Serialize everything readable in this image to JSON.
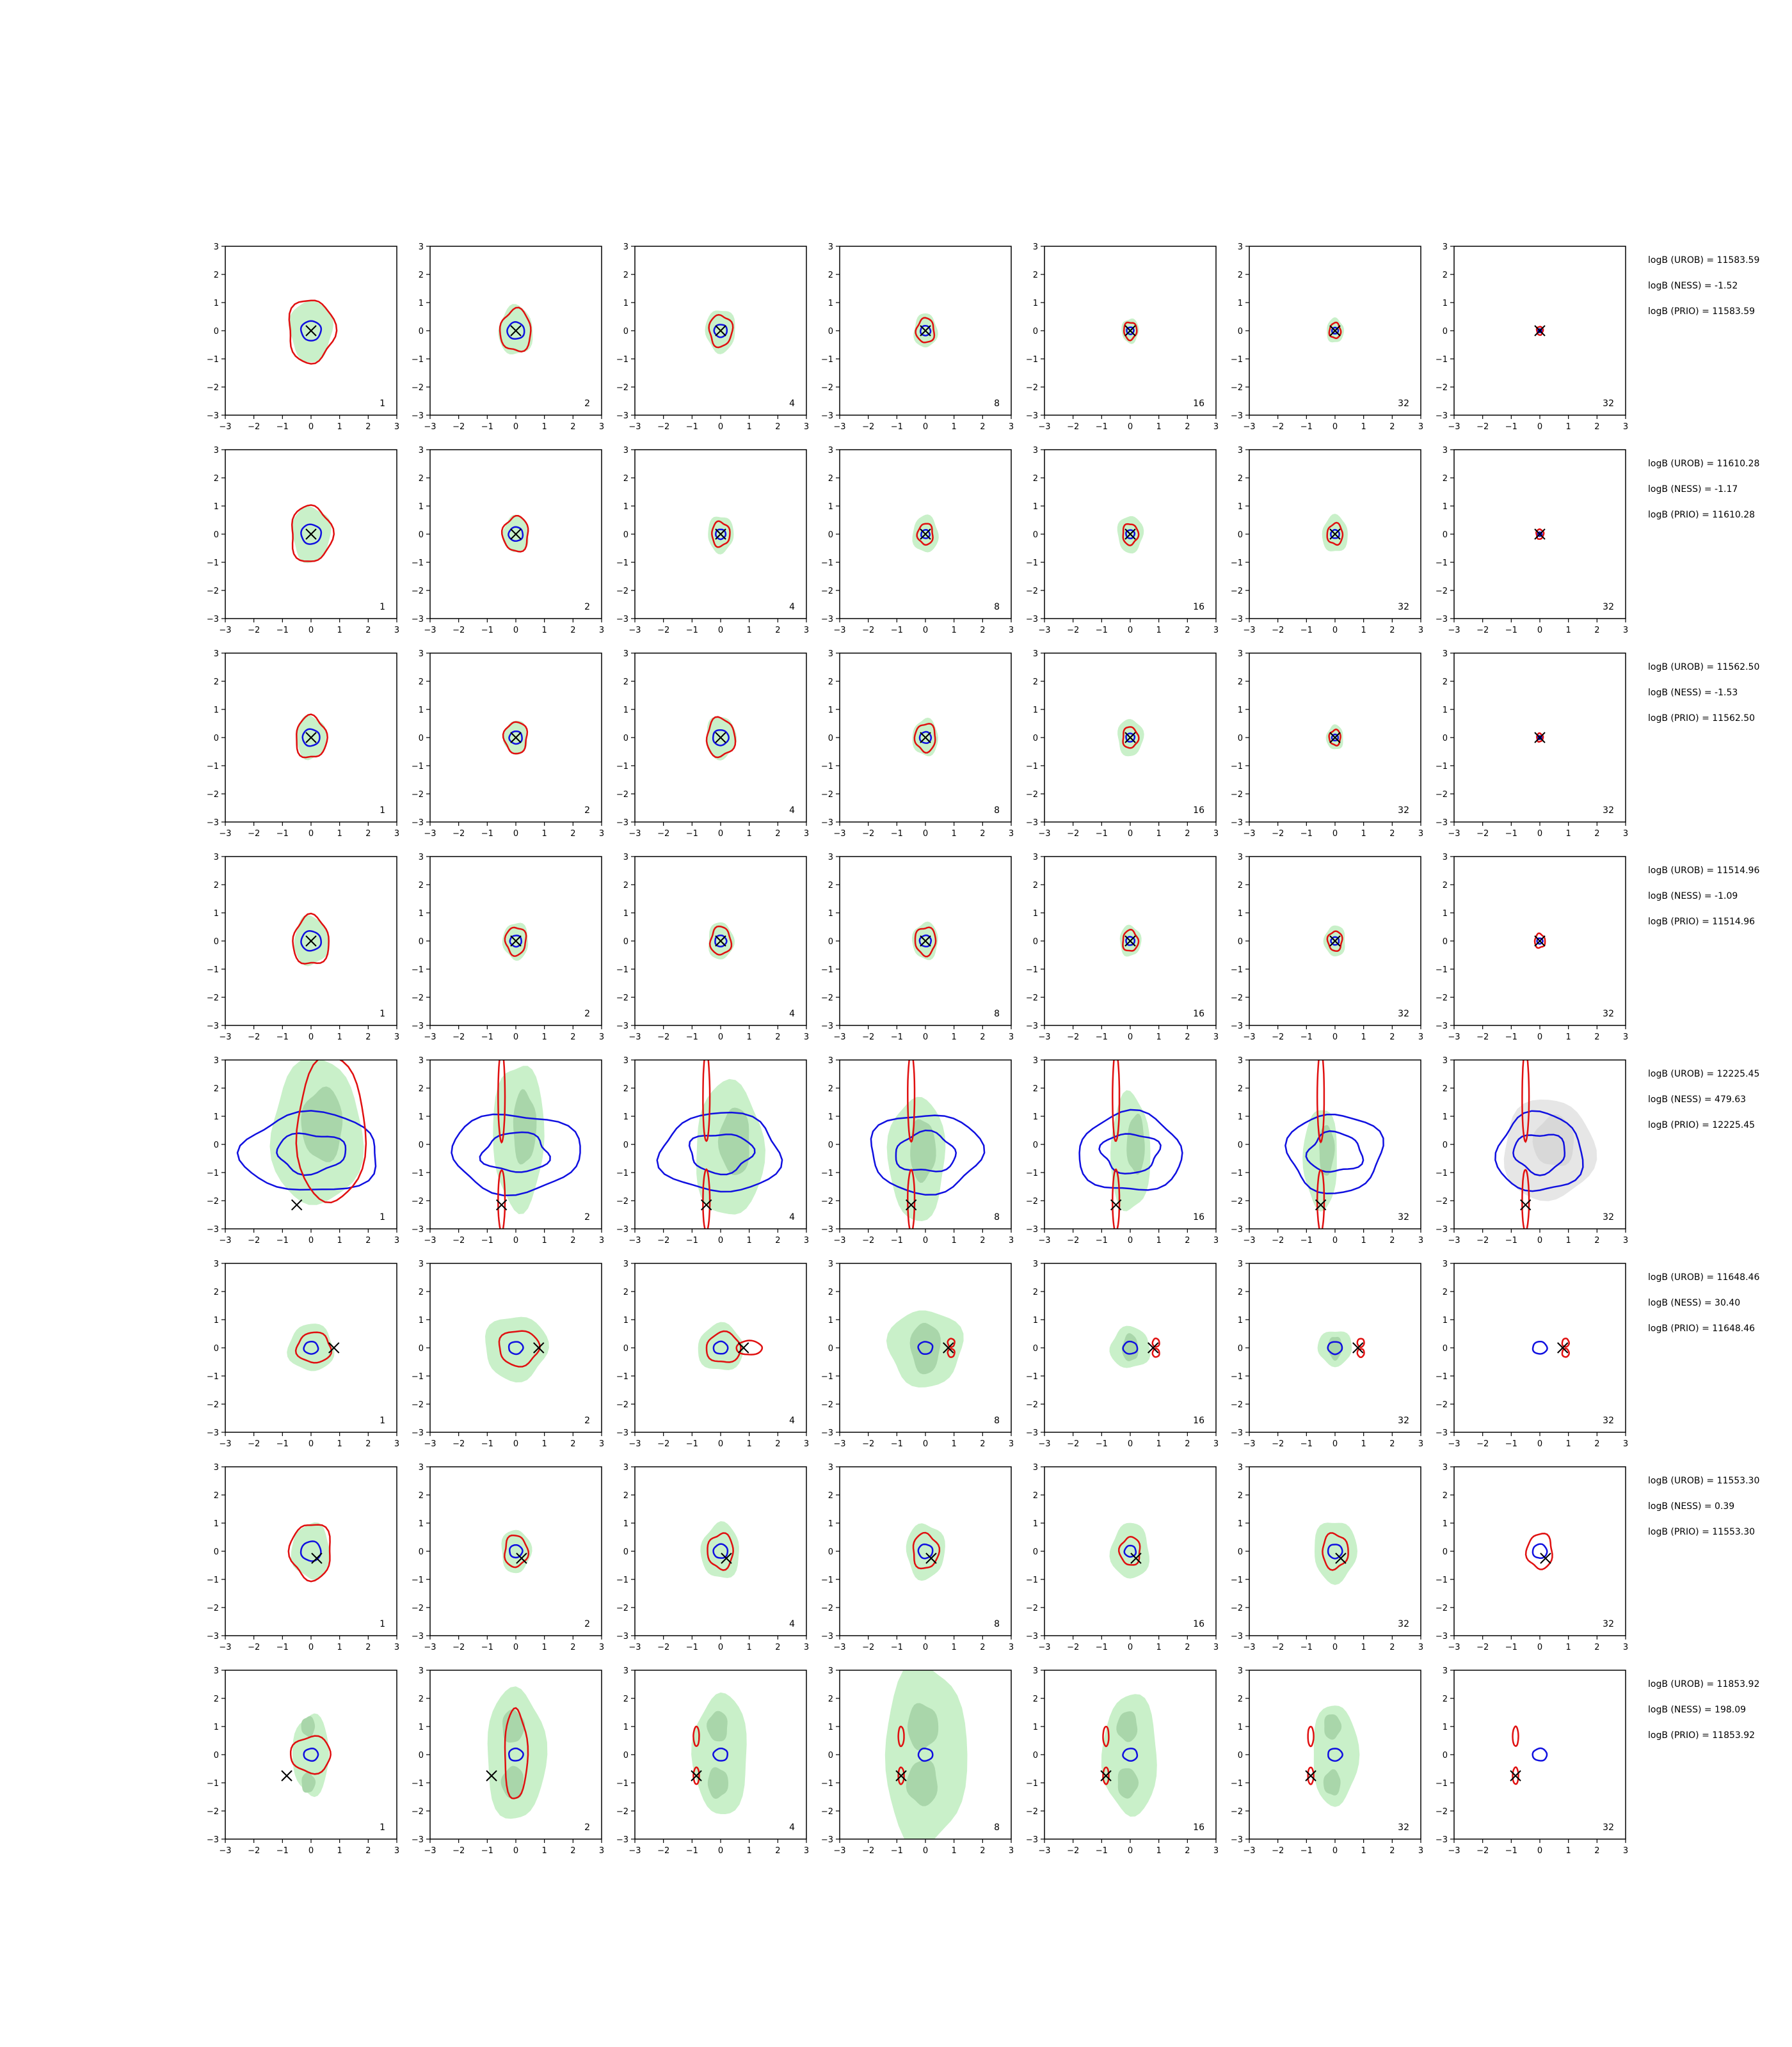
{
  "chart_data": {
    "type": "contour-grid",
    "panel_axes": {
      "xlim": [
        -3,
        3
      ],
      "ylim": [
        -3,
        3
      ],
      "xticks": [
        "−3",
        "−2",
        "−1",
        "0",
        "1",
        "2",
        "3"
      ],
      "yticks": [
        "3",
        "2",
        "1",
        "0",
        "−1",
        "−2",
        "−3"
      ]
    },
    "colors": {
      "fill_outer": "#c9f0c9",
      "fill_inner": "#a9d6aa",
      "fill_grey": "#e6e6e6",
      "red": "#e01010",
      "blue": "#1010e0",
      "marker": "#000000"
    },
    "rows": [
      {
        "panel_labels": [
          "1",
          "2",
          "4",
          "8",
          "16",
          "32",
          "32"
        ],
        "stats": [
          "logB (UROB) = 11583.59",
          "logB (NESS) = -1.52",
          "logB (PRIO) = 11583.59"
        ],
        "truth": [
          0.0,
          0.0
        ],
        "red_size": [
          0.9,
          0.6,
          0.45,
          0.35,
          0.25,
          0.22,
          0.12
        ],
        "green_size": [
          1.0,
          0.8,
          0.7,
          0.55,
          0.4,
          0.4,
          0
        ]
      },
      {
        "panel_labels": [
          "1",
          "2",
          "4",
          "8",
          "16",
          "32",
          "32"
        ],
        "stats": [
          "logB (UROB) = 11610.28",
          "logB (NESS) = -1.17",
          "logB (PRIO) = 11610.28"
        ],
        "truth": [
          0.0,
          0.0
        ],
        "red_size": [
          0.8,
          0.5,
          0.35,
          0.3,
          0.3,
          0.3,
          0.14
        ],
        "green_size": [
          0.9,
          0.6,
          0.6,
          0.6,
          0.6,
          0.6,
          0
        ]
      },
      {
        "panel_labels": [
          "1",
          "2",
          "4",
          "8",
          "16",
          "32",
          "32"
        ],
        "stats": [
          "logB (UROB) = 11562.50",
          "logB (NESS) = -1.53",
          "logB (PRIO) = 11562.50"
        ],
        "truth": [
          0.0,
          0.0
        ],
        "red_size": [
          0.6,
          0.45,
          0.55,
          0.4,
          0.3,
          0.22,
          0.12
        ],
        "green_size": [
          0.7,
          0.55,
          0.7,
          0.6,
          0.6,
          0.4,
          0
        ]
      },
      {
        "panel_labels": [
          "1",
          "2",
          "4",
          "8",
          "16",
          "32",
          "32"
        ],
        "stats": [
          "logB (UROB) = 11514.96",
          "logB (NESS) = -1.09",
          "logB (PRIO) = 11514.96"
        ],
        "truth": [
          0.0,
          0.0
        ],
        "red_size": [
          0.7,
          0.4,
          0.4,
          0.4,
          0.3,
          0.28,
          0.2
        ],
        "green_size": [
          0.8,
          0.6,
          0.6,
          0.6,
          0.5,
          0.5,
          0
        ]
      },
      {
        "panel_labels": [
          "1",
          "2",
          "4",
          "8",
          "16",
          "32",
          "32"
        ],
        "stats": [
          "logB (UROB) = 12225.45",
          "logB (NESS) = 479.63",
          "logB (PRIO) = 12225.45"
        ],
        "truth": [
          -0.5,
          -2.15
        ],
        "special": "wide"
      },
      {
        "panel_labels": [
          "1",
          "2",
          "4",
          "8",
          "16",
          "32",
          "32"
        ],
        "stats": [
          "logB (UROB) = 11648.46",
          "logB (NESS) = 30.40",
          "logB (PRIO) = 11648.46"
        ],
        "truth": [
          0.8,
          0.0
        ],
        "special": "right"
      },
      {
        "panel_labels": [
          "1",
          "2",
          "4",
          "8",
          "16",
          "32",
          "32"
        ],
        "stats": [
          "logB (UROB) = 11553.30",
          "logB (NESS) = 0.39",
          "logB (PRIO) = 11553.30"
        ],
        "truth": [
          0.2,
          -0.25
        ],
        "red_size": [
          0.8,
          0.45,
          0.5,
          0.5,
          0.4,
          0.5,
          0.5
        ],
        "green_size": [
          0.9,
          0.7,
          0.9,
          0.9,
          0.9,
          1.0,
          0
        ]
      },
      {
        "panel_labels": [
          "1",
          "2",
          "4",
          "8",
          "16",
          "32",
          "32"
        ],
        "stats": [
          "logB (UROB) = 11853.92",
          "logB (NESS) = 198.09",
          "logB (PRIO) = 11853.92"
        ],
        "truth": [
          -0.85,
          -0.75
        ],
        "special": "split"
      }
    ]
  }
}
